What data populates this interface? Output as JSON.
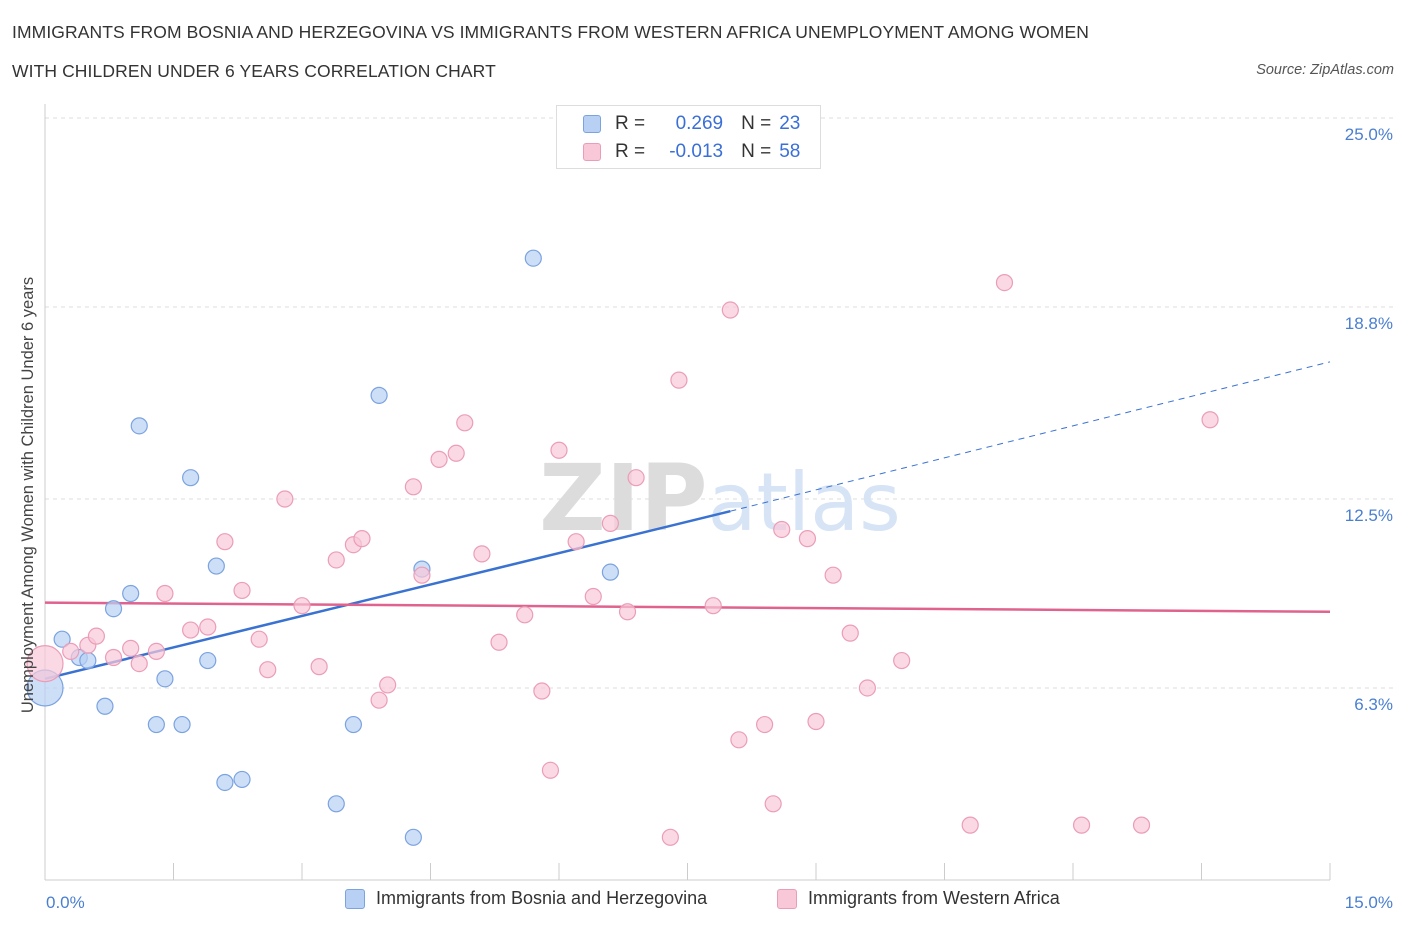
{
  "title_line1": "IMMIGRANTS FROM BOSNIA AND HERZEGOVINA VS IMMIGRANTS FROM WESTERN AFRICA UNEMPLOYMENT AMONG WOMEN",
  "title_line2": "WITH CHILDREN UNDER 6 YEARS CORRELATION CHART",
  "source": "Source: ZipAtlas.com",
  "watermark": "ZIPatlas",
  "legend": {
    "r_label": "R =",
    "n_label": "N =",
    "series1": {
      "r": "0.269",
      "n": "23"
    },
    "series2": {
      "r": "-0.013",
      "n": "58"
    }
  },
  "colors": {
    "blue_fill": "#b8d0f4",
    "blue_stroke": "#7ba3e0",
    "blue_line": "#3a72d2",
    "pink_fill": "#f8c8d8",
    "pink_stroke": "#eb9db8",
    "pink_line": "#e0628e"
  },
  "chart_data": {
    "type": "scatter",
    "title": "IMMIGRANTS FROM BOSNIA AND HERZEGOVINA VS IMMIGRANTS FROM WESTERN AFRICA UNEMPLOYMENT AMONG WOMEN WITH CHILDREN UNDER 6 YEARS CORRELATION CHART",
    "xlabel": "",
    "ylabel": "Unemployment Among Women with Children Under 6 years",
    "xlim": [
      0,
      15
    ],
    "ylim": [
      0,
      25
    ],
    "x_tick_labels": [
      "0.0%",
      "15.0%"
    ],
    "y_ticks": [
      6.3,
      12.5,
      18.8,
      25.0
    ],
    "y_tick_labels": [
      "6.3%",
      "12.5%",
      "18.8%",
      "25.0%"
    ],
    "legend_placement": "top-center",
    "series": [
      {
        "name": "Immigrants from Bosnia and Herzegovina",
        "r": 0.269,
        "n": 23,
        "trend": {
          "x0": 0.0,
          "y0": 6.6,
          "x1": 8.0,
          "y1": 12.1,
          "dashed_to_x": 15.0,
          "dashed_to_y": 17.0
        },
        "points": [
          {
            "x": 0.0,
            "y": 6.3,
            "large": true
          },
          {
            "x": 0.2,
            "y": 7.9
          },
          {
            "x": 0.4,
            "y": 7.3
          },
          {
            "x": 0.5,
            "y": 7.2
          },
          {
            "x": 0.7,
            "y": 5.7
          },
          {
            "x": 0.8,
            "y": 8.9
          },
          {
            "x": 1.0,
            "y": 9.4
          },
          {
            "x": 1.1,
            "y": 14.9
          },
          {
            "x": 1.3,
            "y": 5.1
          },
          {
            "x": 1.4,
            "y": 6.6
          },
          {
            "x": 1.6,
            "y": 5.1
          },
          {
            "x": 1.7,
            "y": 13.2
          },
          {
            "x": 1.9,
            "y": 7.2
          },
          {
            "x": 2.0,
            "y": 10.3
          },
          {
            "x": 2.1,
            "y": 3.2
          },
          {
            "x": 2.3,
            "y": 3.3
          },
          {
            "x": 3.4,
            "y": 2.5
          },
          {
            "x": 3.6,
            "y": 5.1
          },
          {
            "x": 3.9,
            "y": 15.9
          },
          {
            "x": 4.3,
            "y": 1.4
          },
          {
            "x": 4.4,
            "y": 10.2
          },
          {
            "x": 5.7,
            "y": 20.4
          },
          {
            "x": 6.6,
            "y": 10.1
          }
        ]
      },
      {
        "name": "Immigrants from Western Africa",
        "r": -0.013,
        "n": 58,
        "trend": {
          "x0": 0.0,
          "y0": 9.1,
          "x1": 15.0,
          "y1": 8.8
        },
        "points": [
          {
            "x": 0.0,
            "y": 7.1,
            "large": true
          },
          {
            "x": 0.3,
            "y": 7.5
          },
          {
            "x": 0.5,
            "y": 7.7
          },
          {
            "x": 0.6,
            "y": 8.0
          },
          {
            "x": 0.8,
            "y": 7.3
          },
          {
            "x": 1.0,
            "y": 7.6
          },
          {
            "x": 1.1,
            "y": 7.1
          },
          {
            "x": 1.4,
            "y": 9.4
          },
          {
            "x": 1.3,
            "y": 7.5
          },
          {
            "x": 1.7,
            "y": 8.2
          },
          {
            "x": 1.9,
            "y": 8.3
          },
          {
            "x": 2.1,
            "y": 11.1
          },
          {
            "x": 2.3,
            "y": 9.5
          },
          {
            "x": 2.5,
            "y": 7.9
          },
          {
            "x": 2.6,
            "y": 6.9
          },
          {
            "x": 2.8,
            "y": 12.5
          },
          {
            "x": 3.0,
            "y": 9.0
          },
          {
            "x": 3.2,
            "y": 7.0
          },
          {
            "x": 3.4,
            "y": 10.5
          },
          {
            "x": 3.6,
            "y": 11.0
          },
          {
            "x": 3.7,
            "y": 11.2
          },
          {
            "x": 3.9,
            "y": 5.9
          },
          {
            "x": 4.0,
            "y": 6.4
          },
          {
            "x": 4.3,
            "y": 12.9
          },
          {
            "x": 4.4,
            "y": 10.0
          },
          {
            "x": 4.6,
            "y": 13.8
          },
          {
            "x": 4.8,
            "y": 14.0
          },
          {
            "x": 4.9,
            "y": 15.0
          },
          {
            "x": 5.1,
            "y": 10.7
          },
          {
            "x": 5.3,
            "y": 7.8
          },
          {
            "x": 5.6,
            "y": 8.7
          },
          {
            "x": 5.8,
            "y": 6.2
          },
          {
            "x": 5.9,
            "y": 3.6
          },
          {
            "x": 6.0,
            "y": 14.1
          },
          {
            "x": 6.2,
            "y": 11.1
          },
          {
            "x": 6.4,
            "y": 9.3
          },
          {
            "x": 6.6,
            "y": 11.7
          },
          {
            "x": 6.8,
            "y": 8.8
          },
          {
            "x": 6.9,
            "y": 13.2
          },
          {
            "x": 7.3,
            "y": 1.4
          },
          {
            "x": 7.4,
            "y": 16.4
          },
          {
            "x": 7.8,
            "y": 9.0
          },
          {
            "x": 8.0,
            "y": 18.7
          },
          {
            "x": 8.1,
            "y": 4.6
          },
          {
            "x": 8.4,
            "y": 5.1
          },
          {
            "x": 8.5,
            "y": 2.5
          },
          {
            "x": 8.6,
            "y": 11.5
          },
          {
            "x": 8.9,
            "y": 11.2
          },
          {
            "x": 9.0,
            "y": 5.2
          },
          {
            "x": 9.2,
            "y": 10.0
          },
          {
            "x": 9.4,
            "y": 8.1
          },
          {
            "x": 9.6,
            "y": 6.3
          },
          {
            "x": 10.0,
            "y": 7.2
          },
          {
            "x": 10.8,
            "y": 1.8
          },
          {
            "x": 11.2,
            "y": 19.6
          },
          {
            "x": 12.1,
            "y": 1.8
          },
          {
            "x": 12.8,
            "y": 1.8
          },
          {
            "x": 13.6,
            "y": 15.1
          }
        ]
      }
    ]
  }
}
